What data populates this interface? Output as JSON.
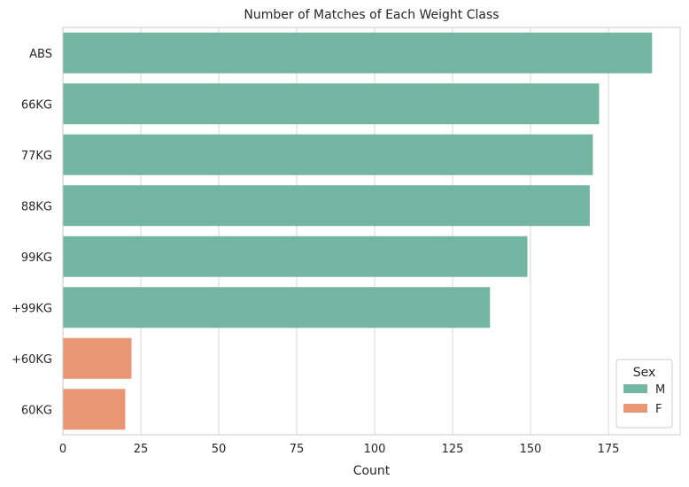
{
  "chart_data": {
    "type": "bar",
    "orientation": "horizontal",
    "title": "Number of Matches of Each Weight Class",
    "xlabel": "Count",
    "ylabel": "",
    "xlim": [
      0,
      198
    ],
    "xticks": [
      0,
      25,
      50,
      75,
      100,
      125,
      150,
      175
    ],
    "grid": true,
    "categories": [
      "ABS",
      "66KG",
      "77KG",
      "88KG",
      "99KG",
      "+99KG",
      "+60KG",
      "60KG"
    ],
    "values": [
      189,
      172,
      170,
      169,
      149,
      137,
      22,
      20
    ],
    "bar_sex": [
      "M",
      "M",
      "M",
      "M",
      "M",
      "M",
      "F",
      "F"
    ],
    "legend": {
      "title": "Sex",
      "placement": "lower-right",
      "entries": [
        {
          "name": "M",
          "color": "#72b6a1"
        },
        {
          "name": "F",
          "color": "#e99675"
        }
      ]
    }
  }
}
